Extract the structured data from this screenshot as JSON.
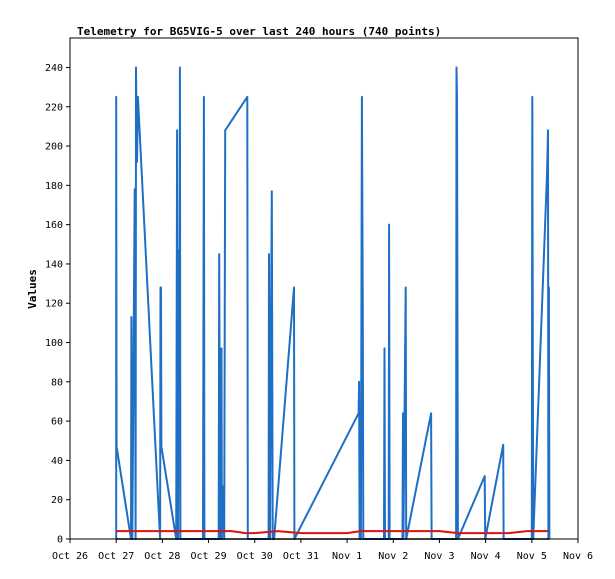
{
  "chart_data": {
    "type": "line",
    "title": "Telemetry for BG5VIG-5 over last 240 hours (740 points)",
    "xlabel": "",
    "ylabel": "Values",
    "ylim": [
      0,
      255
    ],
    "xlim": [
      0,
      11
    ],
    "grid": false,
    "y_ticks": [
      0,
      20,
      40,
      60,
      80,
      100,
      120,
      140,
      160,
      180,
      200,
      220,
      240
    ],
    "x_ticks": [
      {
        "x": 0,
        "label": "Oct 26"
      },
      {
        "x": 1,
        "label": "Oct 27"
      },
      {
        "x": 2,
        "label": "Oct 28"
      },
      {
        "x": 3,
        "label": "Oct 29"
      },
      {
        "x": 4,
        "label": "Oct 30"
      },
      {
        "x": 5,
        "label": "Oct 31"
      },
      {
        "x": 6,
        "label": "Nov 1"
      },
      {
        "x": 7,
        "label": "Nov 2"
      },
      {
        "x": 8,
        "label": "Nov 3"
      },
      {
        "x": 9,
        "label": "Nov 4"
      },
      {
        "x": 10,
        "label": "Nov 5"
      },
      {
        "x": 11,
        "label": "Nov 6"
      }
    ],
    "colors": {
      "series1": "#1f6fc5",
      "series2": "#e01010",
      "series3": "#000000",
      "axis": "#000000"
    },
    "series": [
      {
        "values": [
          [
            1.0,
            0
          ],
          [
            1.0,
            225
          ],
          [
            1.01,
            47
          ],
          [
            1.32,
            0
          ],
          [
            1.33,
            113
          ],
          [
            1.35,
            0
          ],
          [
            1.4,
            178
          ],
          [
            1.42,
            0
          ],
          [
            1.43,
            240
          ],
          [
            1.45,
            192
          ],
          [
            1.47,
            225
          ],
          [
            1.95,
            0
          ],
          [
            1.96,
            128
          ],
          [
            1.97,
            128
          ],
          [
            1.98,
            47
          ],
          [
            2.3,
            0
          ],
          [
            2.32,
            208
          ],
          [
            2.34,
            0
          ],
          [
            2.36,
            147
          ],
          [
            2.37,
            32
          ],
          [
            2.38,
            240
          ],
          [
            2.39,
            0
          ],
          [
            2.88,
            0
          ],
          [
            2.89,
            128
          ],
          [
            2.9,
            225
          ],
          [
            2.91,
            0
          ],
          [
            3.22,
            0
          ],
          [
            3.23,
            145
          ],
          [
            3.25,
            0
          ],
          [
            3.28,
            97
          ],
          [
            3.29,
            0
          ],
          [
            3.3,
            27
          ],
          [
            3.34,
            0
          ],
          [
            3.36,
            208
          ],
          [
            3.84,
            225
          ],
          [
            3.85,
            0
          ],
          [
            4.3,
            0
          ],
          [
            4.31,
            145
          ],
          [
            4.33,
            0
          ],
          [
            4.35,
            90
          ],
          [
            4.37,
            177
          ],
          [
            4.39,
            0
          ],
          [
            4.42,
            0
          ],
          [
            4.85,
            128
          ],
          [
            4.86,
            0
          ],
          [
            6.25,
            64
          ],
          [
            6.26,
            80
          ],
          [
            6.27,
            0
          ],
          [
            6.3,
            0
          ],
          [
            6.32,
            225
          ],
          [
            6.34,
            113
          ],
          [
            6.35,
            0
          ],
          [
            6.8,
            0
          ],
          [
            6.81,
            97
          ],
          [
            6.82,
            0
          ],
          [
            6.9,
            0
          ],
          [
            6.91,
            160
          ],
          [
            6.92,
            0
          ],
          [
            7.2,
            0
          ],
          [
            7.21,
            64
          ],
          [
            7.22,
            0
          ],
          [
            7.27,
            128
          ],
          [
            7.28,
            0
          ],
          [
            7.82,
            64
          ],
          [
            7.83,
            0
          ],
          [
            8.36,
            0
          ],
          [
            8.37,
            240
          ],
          [
            8.38,
            225
          ],
          [
            8.4,
            0
          ],
          [
            8.98,
            32
          ],
          [
            8.99,
            0
          ],
          [
            9.38,
            48
          ],
          [
            9.39,
            0
          ],
          [
            10.0,
            0
          ],
          [
            10.01,
            225
          ],
          [
            10.03,
            0
          ],
          [
            10.33,
            187
          ],
          [
            10.35,
            208
          ],
          [
            10.36,
            0
          ],
          [
            10.37,
            128
          ],
          [
            10.38,
            0
          ]
        ]
      },
      {
        "values": [
          [
            1.0,
            4
          ],
          [
            1.5,
            4
          ],
          [
            2.0,
            4
          ],
          [
            2.5,
            4
          ],
          [
            3.0,
            4
          ],
          [
            3.5,
            4
          ],
          [
            3.8,
            3
          ],
          [
            4.0,
            3
          ],
          [
            4.5,
            4
          ],
          [
            5.0,
            3
          ],
          [
            5.5,
            3
          ],
          [
            6.0,
            3
          ],
          [
            6.3,
            4
          ],
          [
            7.0,
            4
          ],
          [
            7.5,
            4
          ],
          [
            8.0,
            4
          ],
          [
            8.4,
            3
          ],
          [
            9.0,
            3
          ],
          [
            9.5,
            3
          ],
          [
            9.9,
            4
          ],
          [
            10.2,
            4
          ],
          [
            10.36,
            4
          ]
        ]
      },
      {
        "values": [
          [
            1.0,
            0
          ],
          [
            10.37,
            0
          ]
        ]
      }
    ]
  }
}
